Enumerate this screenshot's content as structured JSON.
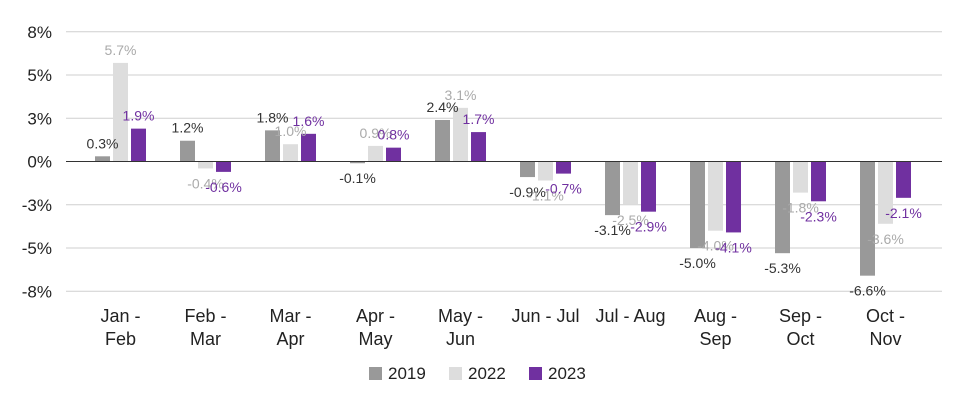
{
  "chart_data": {
    "type": "bar",
    "title": "",
    "xlabel": "",
    "ylabel": "",
    "ylim": [
      -8,
      8
    ],
    "y_ticks": [
      {
        "value": -7.5,
        "label": "-8%"
      },
      {
        "value": -5,
        "label": "-5%"
      },
      {
        "value": -2.5,
        "label": "-3%"
      },
      {
        "value": 0,
        "label": "0%"
      },
      {
        "value": 2.5,
        "label": "3%"
      },
      {
        "value": 5,
        "label": "5%"
      },
      {
        "value": 7.5,
        "label": "8%"
      }
    ],
    "grid": true,
    "legend_position": "bottom",
    "categories": [
      [
        "Jan -",
        "Feb"
      ],
      [
        "Feb -",
        "Mar"
      ],
      [
        "Mar -",
        "Apr"
      ],
      [
        "Apr -",
        "May"
      ],
      [
        "May -",
        "Jun"
      ],
      [
        "Jun - Jul"
      ],
      [
        "Jul - Aug"
      ],
      [
        "Aug -",
        "Sep"
      ],
      [
        "Sep -",
        "Oct"
      ],
      [
        "Oct -",
        "Nov"
      ]
    ],
    "series": [
      {
        "name": "2019",
        "color": "#999999",
        "label_color": "#333333",
        "values": [
          0.3,
          1.2,
          1.8,
          -0.1,
          2.4,
          -0.9,
          -3.1,
          -5.0,
          -5.3,
          -6.6
        ],
        "labels": [
          "0.3%",
          "1.2%",
          "1.8%",
          "-0.1%",
          "2.4%",
          "-0.9%",
          "-3.1%",
          "-5.0%",
          "-5.3%",
          "-6.6%"
        ]
      },
      {
        "name": "2022",
        "color": "#dddddd",
        "label_color": "#aaaaaa",
        "values": [
          5.7,
          -0.4,
          1.0,
          0.9,
          3.1,
          -1.1,
          -2.5,
          -4.0,
          -1.8,
          -3.6
        ],
        "labels": [
          "5.7%",
          "-0.4%",
          "1.0%",
          "0.9%",
          "3.1%",
          "-1.1%",
          "-2.5%",
          "-4.0%",
          "-1.8%",
          "-3.6%"
        ]
      },
      {
        "name": "2023",
        "color": "#7030a0",
        "label_color": "#7030a0",
        "values": [
          1.9,
          -0.6,
          1.6,
          0.8,
          1.7,
          -0.7,
          -2.9,
          -4.1,
          -2.3,
          -2.1
        ],
        "labels": [
          "1.9%",
          "-0.6%",
          "1.6%",
          "0.8%",
          "1.7%",
          "-0.7%",
          "-2.9%",
          "-4.1%",
          "-2.3%",
          "-2.1%"
        ]
      }
    ]
  }
}
